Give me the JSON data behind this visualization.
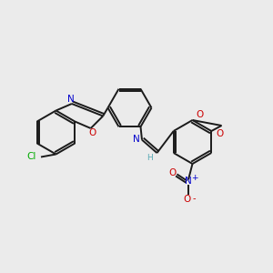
{
  "background_color": "#eeeeee",
  "bond_color": "#1a1a1a",
  "atom_colors": {
    "N": "#0000cc",
    "O": "#cc0000",
    "Cl": "#00aa00",
    "H": "#5baab5"
  },
  "bg": "#ebebeb"
}
